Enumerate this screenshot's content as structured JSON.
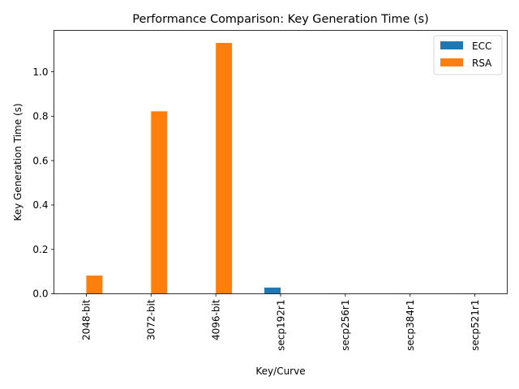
{
  "chart_data": {
    "type": "bar",
    "title": "Performance Comparison: Key Generation Time (s)",
    "xlabel": "Key/Curve",
    "ylabel": "Key Generation Time (s)",
    "categories": [
      "2048-bit",
      "3072-bit",
      "4096-bit",
      "secp192r1",
      "secp256r1",
      "secp384r1",
      "secp521r1"
    ],
    "series": [
      {
        "name": "ECC",
        "color": "#1f77b4",
        "values": [
          0,
          0,
          0,
          0.028,
          0.001,
          0.001,
          0.001
        ]
      },
      {
        "name": "RSA",
        "color": "#ff7f0e",
        "values": [
          0.082,
          0.822,
          1.13,
          0,
          0,
          0,
          0
        ]
      }
    ],
    "ylim": [
      0,
      1.1865
    ],
    "yticks": [
      0.0,
      0.2,
      0.4,
      0.6,
      0.8,
      1.0
    ],
    "ytick_labels": [
      "0.0",
      "0.2",
      "0.4",
      "0.6",
      "0.8",
      "1.0"
    ],
    "grid": false,
    "legend": "top-right"
  }
}
